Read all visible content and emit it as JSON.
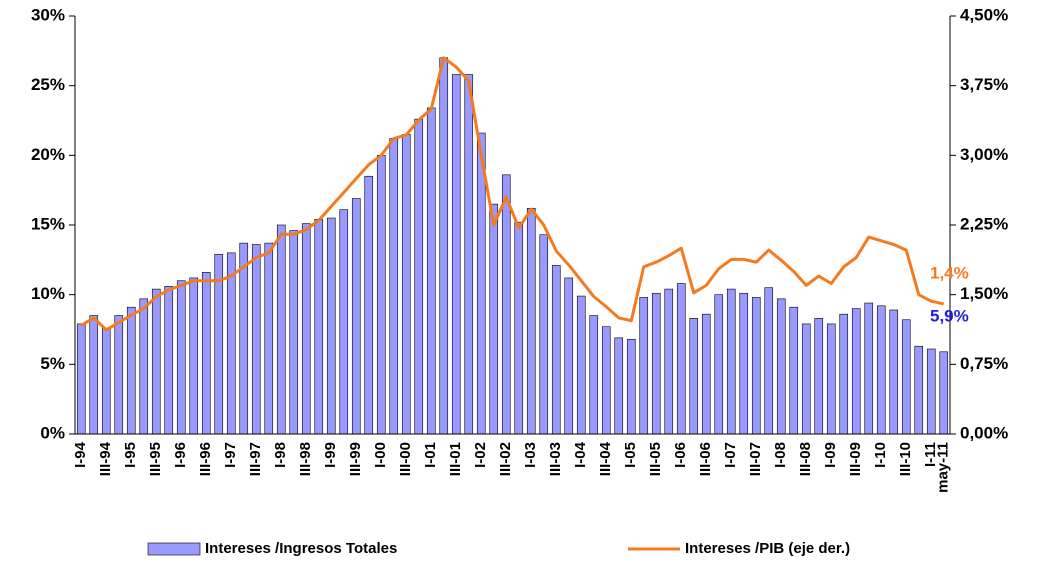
{
  "chart_data": {
    "type": "bar_line",
    "categories": [
      "I-94",
      null,
      "III-94",
      null,
      "I-95",
      null,
      "III-95",
      null,
      "I-96",
      null,
      "III-96",
      null,
      "I-97",
      null,
      "III-97",
      null,
      "I-98",
      null,
      "III-98",
      null,
      "I-99",
      null,
      "III-99",
      null,
      "I-00",
      null,
      "III-00",
      null,
      "I-01",
      null,
      "III-01",
      null,
      "I-02",
      null,
      "III-02",
      null,
      "I-03",
      null,
      "III-03",
      null,
      "I-04",
      null,
      "III-04",
      null,
      "I-05",
      null,
      "III-05",
      null,
      "I-06",
      null,
      "III-06",
      null,
      "I-07",
      null,
      "III-07",
      null,
      "I-08",
      null,
      "III-08",
      null,
      "I-09",
      null,
      "III-09",
      null,
      "I-10",
      null,
      "III-10",
      null,
      "I-11",
      "may-11"
    ],
    "series": [
      {
        "name": "Intereses /Ingresos Totales",
        "type": "bar",
        "color": "#9999ff",
        "axis": "y",
        "values": [
          7.9,
          8.5,
          7.6,
          8.5,
          9.1,
          9.7,
          10.4,
          10.6,
          11.0,
          11.2,
          11.6,
          12.9,
          13.0,
          13.7,
          13.6,
          13.7,
          15.0,
          14.6,
          15.1,
          15.4,
          15.5,
          16.1,
          16.9,
          18.5,
          20.0,
          21.2,
          21.5,
          22.6,
          23.4,
          27.0,
          25.8,
          25.8,
          21.6,
          16.5,
          18.6,
          15.2,
          16.2,
          14.3,
          12.1,
          11.2,
          9.9,
          8.5,
          7.7,
          6.9,
          6.8,
          9.8,
          10.1,
          10.4,
          10.8,
          8.3,
          8.6,
          10.0,
          10.4,
          10.1,
          9.8,
          10.5,
          9.7,
          9.1,
          7.9,
          8.3,
          7.9,
          8.6,
          9.0,
          9.4,
          9.2,
          8.9,
          8.2,
          6.3,
          6.1,
          5.9
        ],
        "value_labels": [
          null,
          null,
          null,
          null,
          null,
          null,
          null,
          null,
          null,
          null,
          null,
          null,
          null,
          null,
          null,
          null,
          null,
          null,
          null,
          null,
          null,
          null,
          null,
          null,
          null,
          null,
          null,
          null,
          null,
          null,
          null,
          null,
          null,
          null,
          null,
          null,
          null,
          null,
          null,
          null,
          null,
          null,
          null,
          null,
          null,
          null,
          null,
          null,
          null,
          null,
          null,
          null,
          null,
          null,
          null,
          null,
          null,
          null,
          null,
          null,
          null,
          null,
          null,
          null,
          null,
          null,
          null,
          null,
          null,
          "5,9%"
        ],
        "label_color": "#1f1fd6"
      },
      {
        "name": "Intereses /PIB (eje der.)",
        "type": "line",
        "color": "#f47a20",
        "axis": "y2",
        "values": [
          1.17,
          1.25,
          1.12,
          1.2,
          1.28,
          1.35,
          1.48,
          1.55,
          1.6,
          1.65,
          1.65,
          1.65,
          1.7,
          1.8,
          1.9,
          1.95,
          2.15,
          2.15,
          2.2,
          2.3,
          2.45,
          2.6,
          2.75,
          2.9,
          3.0,
          3.18,
          3.22,
          3.38,
          3.5,
          4.05,
          3.95,
          3.8,
          3.0,
          2.25,
          2.55,
          2.22,
          2.42,
          2.25,
          1.97,
          1.82,
          1.65,
          1.48,
          1.37,
          1.25,
          1.22,
          1.8,
          1.85,
          1.92,
          2.0,
          1.52,
          1.6,
          1.78,
          1.88,
          1.88,
          1.85,
          1.98,
          1.87,
          1.75,
          1.6,
          1.7,
          1.62,
          1.8,
          1.9,
          2.12,
          2.08,
          2.04,
          1.98,
          1.5,
          1.43,
          1.4
        ],
        "value_labels": [
          null,
          null,
          null,
          null,
          null,
          null,
          null,
          null,
          null,
          null,
          null,
          null,
          null,
          null,
          null,
          null,
          null,
          null,
          null,
          null,
          null,
          null,
          null,
          null,
          null,
          null,
          null,
          null,
          null,
          null,
          null,
          null,
          null,
          null,
          null,
          null,
          null,
          null,
          null,
          null,
          null,
          null,
          null,
          null,
          null,
          null,
          null,
          null,
          null,
          null,
          null,
          null,
          null,
          null,
          null,
          null,
          null,
          null,
          null,
          null,
          null,
          null,
          null,
          null,
          null,
          null,
          null,
          null,
          null,
          "1,4%"
        ],
        "label_color": "#f47a20"
      }
    ],
    "ylim": [
      0,
      30
    ],
    "yticks": [
      {
        "value": 0,
        "label": "0%"
      },
      {
        "value": 5,
        "label": "5%"
      },
      {
        "value": 10,
        "label": "10%"
      },
      {
        "value": 15,
        "label": "15%"
      },
      {
        "value": 20,
        "label": "20%"
      },
      {
        "value": 25,
        "label": "25%"
      },
      {
        "value": 30,
        "label": "30%"
      }
    ],
    "y2lim": [
      0,
      4.5
    ],
    "y2ticks": [
      {
        "value": 0,
        "label": "0,00%"
      },
      {
        "value": 0.75,
        "label": "0,75%"
      },
      {
        "value": 1.5,
        "label": "1,50%"
      },
      {
        "value": 2.25,
        "label": "2,25%"
      },
      {
        "value": 3,
        "label": "3,00%"
      },
      {
        "value": 3.75,
        "label": "3,75%"
      },
      {
        "value": 4.5,
        "label": "4,50%"
      }
    ],
    "legend": "bottom"
  }
}
